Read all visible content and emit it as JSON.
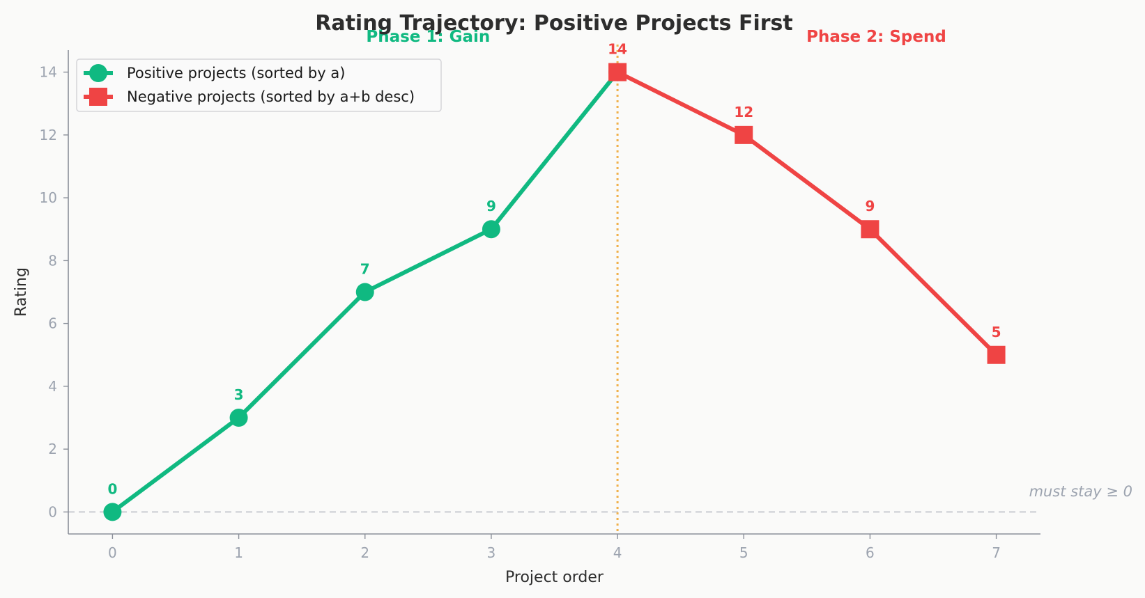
{
  "chart_data": {
    "type": "line",
    "title": "Rating Trajectory: Positive Projects First",
    "xlabel": "Project order",
    "ylabel": "Rating",
    "xlim": [
      -0.35,
      7.35
    ],
    "ylim": [
      -0.7,
      14.7
    ],
    "xticks": [
      0,
      1,
      2,
      3,
      4,
      5,
      6,
      7
    ],
    "yticks": [
      0,
      2,
      4,
      6,
      8,
      10,
      12,
      14
    ],
    "grid": false,
    "legend_position": "top-left",
    "series": [
      {
        "name": "Positive projects (sorted by a)",
        "marker": "circle",
        "color": "#10b981",
        "x": [
          0,
          1,
          2,
          3,
          4
        ],
        "y": [
          0,
          3,
          7,
          9,
          14
        ]
      },
      {
        "name": "Negative projects (sorted by a+b desc)",
        "marker": "square",
        "color": "#ef4444",
        "x": [
          4,
          5,
          6,
          7
        ],
        "y": [
          14,
          12,
          9,
          5
        ]
      }
    ],
    "data_labels": [
      {
        "x": 0,
        "y": 0,
        "text": "0",
        "color": "#10b981"
      },
      {
        "x": 1,
        "y": 3,
        "text": "3",
        "color": "#10b981"
      },
      {
        "x": 2,
        "y": 7,
        "text": "7",
        "color": "#10b981"
      },
      {
        "x": 3,
        "y": 9,
        "text": "9",
        "color": "#10b981"
      },
      {
        "x": 4,
        "y": 14,
        "text": "14",
        "color": "#ef4444"
      },
      {
        "x": 5,
        "y": 12,
        "text": "12",
        "color": "#ef4444"
      },
      {
        "x": 6,
        "y": 9,
        "text": "9",
        "color": "#ef4444"
      },
      {
        "x": 7,
        "y": 5,
        "text": "5",
        "color": "#ef4444"
      }
    ],
    "annotations": {
      "phase1": {
        "text": "Phase 1: Gain",
        "color": "#10b981",
        "x": 2.5
      },
      "phase2": {
        "text": "Phase 2: Spend",
        "color": "#ef4444",
        "x": 6.05
      },
      "divider": {
        "x": 4,
        "color": "#f0b04a"
      },
      "threshold": {
        "y": 0,
        "text": "must stay ≥ 0",
        "color": "#c9ccd2"
      }
    },
    "axis_color": "#8a8f99"
  }
}
